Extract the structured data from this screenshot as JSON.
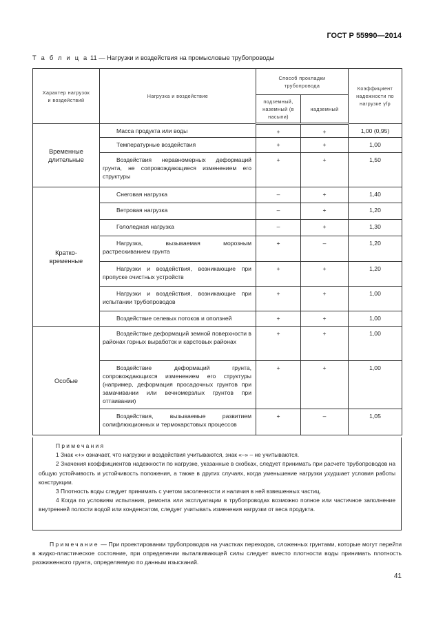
{
  "header": {
    "standard": "ГОСТ Р 55990—2014"
  },
  "table": {
    "caption_label": "Т а б л и ц а",
    "caption_text": " 11 — Нагрузки и воздействия на промысловые трубопроводы",
    "headers": {
      "character": "Характер нагрузок и воздействий",
      "load": "Нагрузка и воздействие",
      "method": "Способ прокладки трубопровода",
      "underground": "подземный, наземный (в насыпи)",
      "aboveground": "надземный",
      "coef": "Коэффициент надежности по нагрузке γfp"
    },
    "groups": [
      {
        "name": "Временные длительные",
        "rows": [
          {
            "load": "Масса продукта или воды",
            "under": "+",
            "above": "+",
            "coef": "1,00 (0,95)"
          },
          {
            "load": "Температурные воздействия",
            "under": "+",
            "above": "+",
            "coef": "1,00"
          },
          {
            "load": "Воздействия неравномерных деформаций грунта, не сопровождающиеся изменением его структуры",
            "under": "+",
            "above": "+",
            "coef": "1,50"
          }
        ]
      },
      {
        "name": "Кратко-временные",
        "rows": [
          {
            "load": "Снеговая нагрузка",
            "under": "–",
            "above": "+",
            "coef": "1,40"
          },
          {
            "load": "Ветровая нагрузка",
            "under": "–",
            "above": "+",
            "coef": "1,20"
          },
          {
            "load": "Гололедная нагрузка",
            "under": "–",
            "above": "+",
            "coef": "1,30"
          },
          {
            "load": "Нагрузка, вызываемая морозным растрескиванием грунта",
            "under": "+",
            "above": "–",
            "coef": "1,20"
          },
          {
            "load": "Нагрузки и воздействия, возникающие при пропуске очистных устройств",
            "under": "+",
            "above": "+",
            "coef": "1,20"
          },
          {
            "load": "Нагрузки и воздействия, возникающие при испытании трубопроводов",
            "under": "+",
            "above": "+",
            "coef": "1,00"
          },
          {
            "load": "Воздействие селевых потоков и оползней",
            "under": "+",
            "above": "+",
            "coef": "1,00"
          }
        ]
      },
      {
        "name": "Особые",
        "rows": [
          {
            "load": "Воздействие деформаций земной поверхности в районах горных выработок и карстовых районах",
            "under": "+",
            "above": "+",
            "coef": "1,00"
          },
          {
            "load": "Воздействие деформаций грунта, сопровождающихся изменением его структуры (например, деформация просадочных грунтов при замачивании или вечномерзлых грунтов при оттаивании)",
            "under": "+",
            "above": "+",
            "coef": "1,00"
          },
          {
            "load": "Воздействия, вызываемые развитием солифлюкционных и термокарстовых процессов",
            "under": "+",
            "above": "–",
            "coef": "1,05"
          }
        ]
      }
    ]
  },
  "notes": {
    "title": "Примечания",
    "items": [
      "1 Знак «+» означает, что нагрузки и воздействия учитываются, знак «–» – не учитываются.",
      "2 Значения коэффициентов надежности по нагрузке, указанные в скобках, следует принимать при расчете трубопроводов на общую устойчивость и устойчивость положения, а также в других случаях, когда уменьшение нагрузки ухудшает условия работы конструкции.",
      "3 Плотность воды следует принимать с учетом засоленности и наличия в ней взвешенных частиц.",
      "4 Когда по условиям испытания, ремонта или эксплуатации в трубопроводах возможно полное или частичное заполнение внутренней полости водой или конденсатом, следует учитывать изменения нагрузки от веса продукта."
    ]
  },
  "footnote": {
    "label": "Примечание",
    "text": " — При проектировании трубопроводов на участках переходов, сложенных грунтами, которые могут перейти в жидко-пластическое состояние, при определении выталкивающей силы следует вместо плотности воды принимать плотность разжиженного грунта, определяемую по данным изысканий."
  },
  "page_number": "41"
}
